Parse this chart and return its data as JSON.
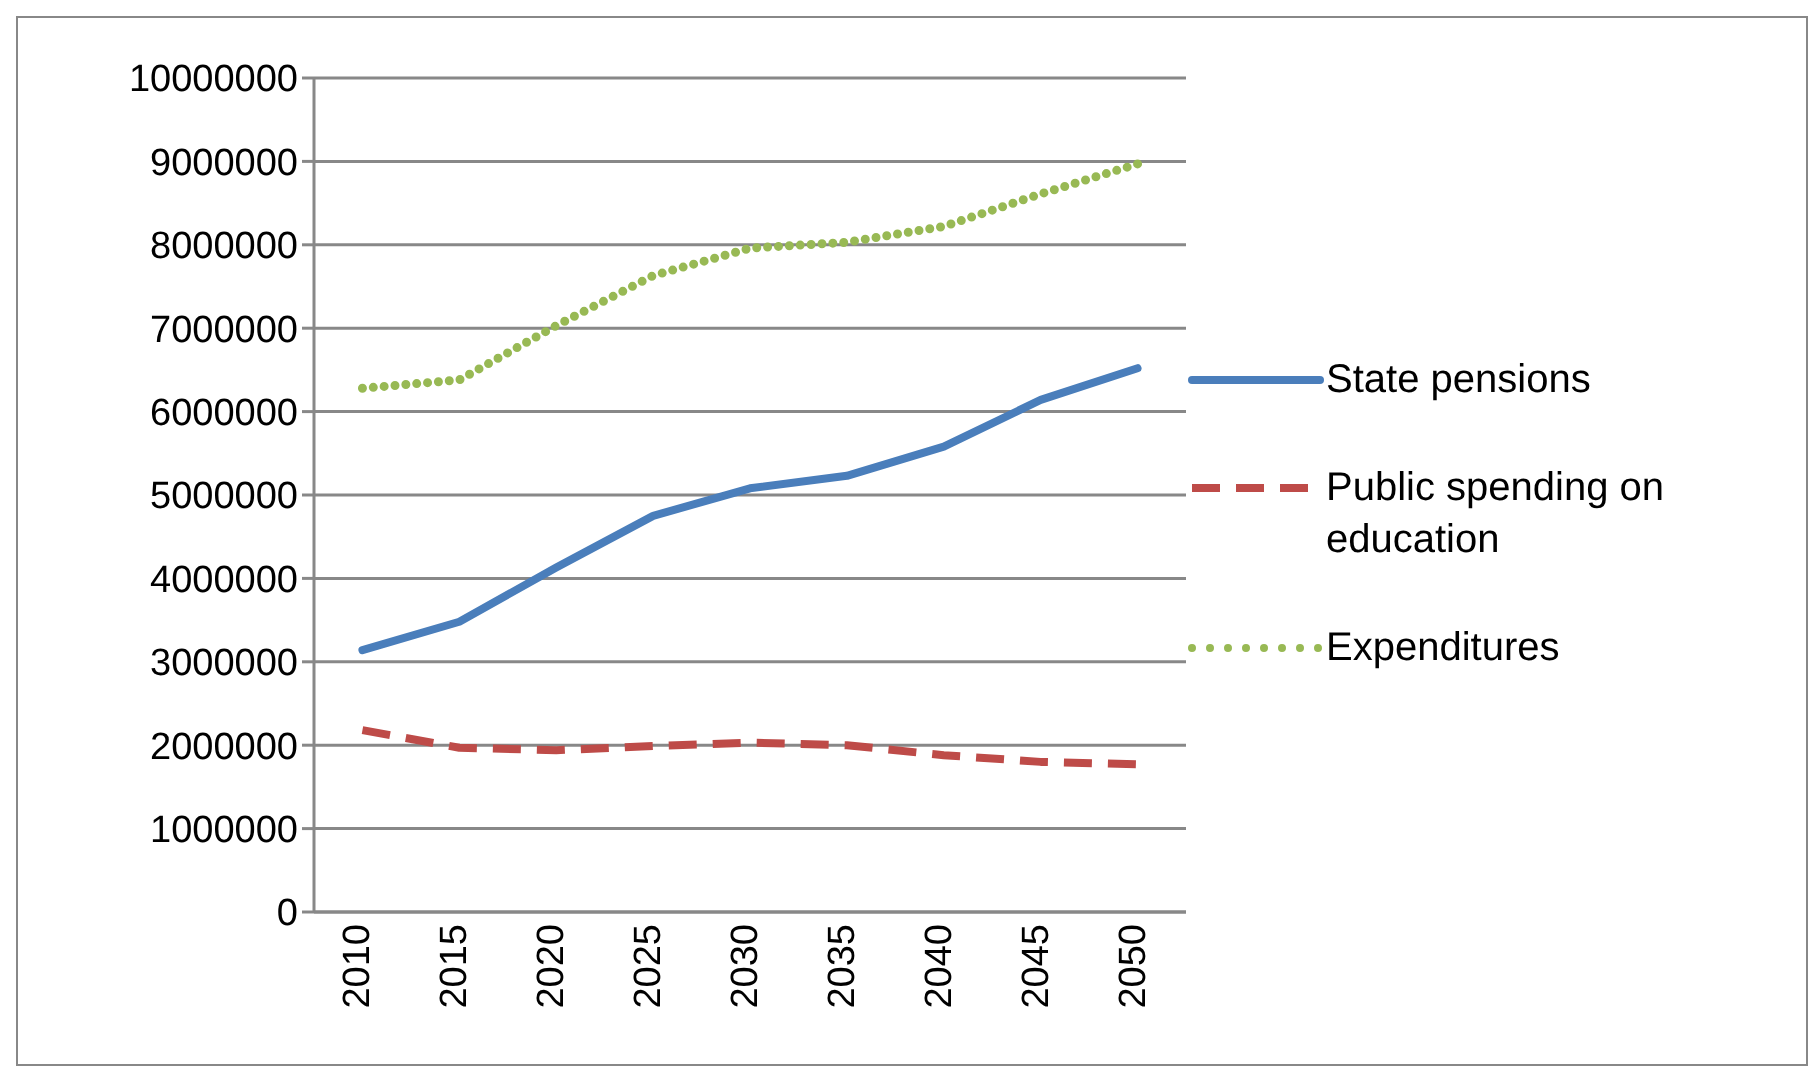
{
  "chart_data": {
    "type": "line",
    "categories": [
      "2010",
      "2015",
      "2020",
      "2025",
      "2030",
      "2035",
      "2040",
      "2045",
      "2050"
    ],
    "series": [
      {
        "name": "State pensions",
        "color": "#4a7ebb",
        "line_style": "solid",
        "values": [
          3140000,
          3480000,
          4130000,
          4750000,
          5080000,
          5230000,
          5580000,
          6140000,
          6520000
        ]
      },
      {
        "name": "Public spending on education",
        "color": "#be4b48",
        "line_style": "dashed",
        "values": [
          2180000,
          1970000,
          1940000,
          1990000,
          2030000,
          2000000,
          1880000,
          1800000,
          1770000
        ]
      },
      {
        "name": "Expenditures",
        "color": "#98b954",
        "line_style": "dotted",
        "values": [
          6280000,
          6380000,
          7030000,
          7630000,
          7960000,
          8030000,
          8220000,
          8610000,
          8970000
        ]
      }
    ],
    "ylim": [
      0,
      10000000
    ],
    "yticks": [
      0,
      1000000,
      2000000,
      3000000,
      4000000,
      5000000,
      6000000,
      7000000,
      8000000,
      9000000,
      10000000
    ],
    "grid": "y",
    "legend": "right",
    "marker": "none"
  }
}
